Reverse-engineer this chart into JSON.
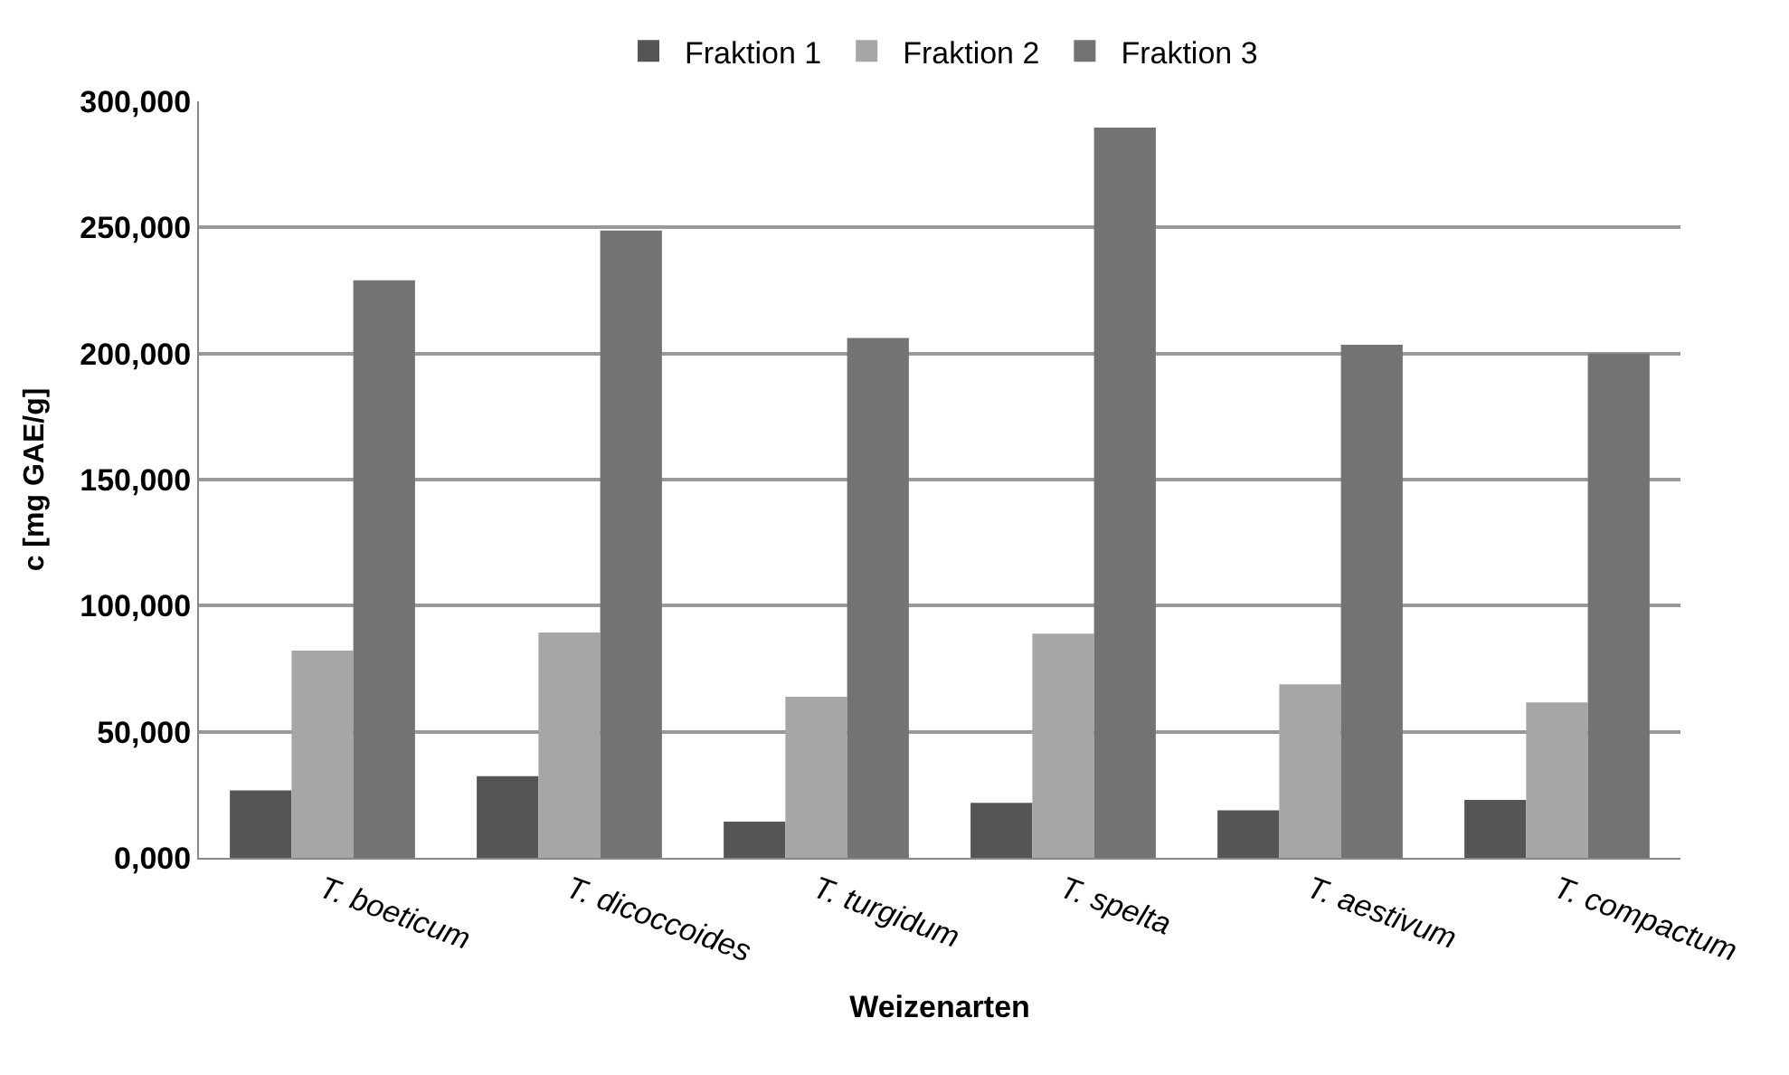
{
  "chart_data": {
    "type": "bar",
    "xlabel": "Weizenarten",
    "ylabel": "c [mg GAE/g]",
    "categories": [
      "T. boeticum",
      "T. dicoccoides",
      "T. turgidum",
      "T. spelta",
      "T. aestivum",
      "T. compactum"
    ],
    "series": [
      {
        "name": "Fraktion 1",
        "color": "#555555",
        "values": [
          26700,
          32400,
          14400,
          21800,
          18800,
          23000
        ]
      },
      {
        "name": "Fraktion 2",
        "color": "#a6a6a6",
        "values": [
          82200,
          89400,
          63900,
          88900,
          68800,
          61600
        ]
      },
      {
        "name": "Fraktion 3",
        "color": "#737373",
        "values": [
          229000,
          248800,
          206200,
          289600,
          203500,
          200000
        ]
      }
    ],
    "ylim": [
      0,
      300000
    ],
    "yticks": [
      {
        "value": 0,
        "label": "0,000"
      },
      {
        "value": 50000,
        "label": "50,000"
      },
      {
        "value": 100000,
        "label": "100,000"
      },
      {
        "value": 150000,
        "label": "150,000"
      },
      {
        "value": 200000,
        "label": "200,000"
      },
      {
        "value": 250000,
        "label": "250,000"
      },
      {
        "value": 300000,
        "label": "300,000"
      }
    ],
    "grid": "y",
    "legend": "top"
  }
}
